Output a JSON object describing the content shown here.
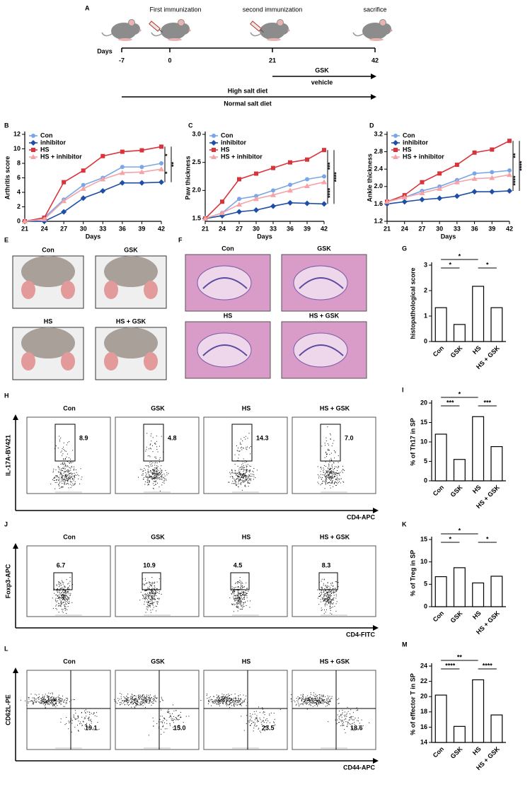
{
  "figure_a": {
    "label": "A",
    "events": [
      "First immunization",
      "second immunization",
      "sacrifice"
    ],
    "days_label": "Days",
    "days": [
      "-7",
      "0",
      "21",
      "42"
    ],
    "treatments": [
      "GSK",
      "vehicle"
    ],
    "diets": [
      "High salt diet",
      "Normal salt diet"
    ]
  },
  "chart_data": [
    {
      "type": "line",
      "panel": "B",
      "ylabel": "Arthritis score",
      "xlabel": "Days",
      "x": [
        21,
        24,
        27,
        30,
        33,
        36,
        39,
        42
      ],
      "xlim": [
        21,
        42
      ],
      "xticks": [
        21,
        24,
        27,
        30,
        33,
        36,
        39,
        42
      ],
      "ylim": [
        0,
        12
      ],
      "yticks": [
        0,
        2,
        4,
        6,
        8,
        10,
        12
      ],
      "legend": "upper left",
      "series": [
        {
          "name": "Con",
          "color": "#7aa6e8",
          "values": [
            0,
            0.5,
            3,
            5,
            6,
            7.5,
            7.5,
            8
          ]
        },
        {
          "name": "inhibitor",
          "color": "#1e4fa8",
          "values": [
            0,
            0,
            1.3,
            3.2,
            4.2,
            5.3,
            5.3,
            5.4
          ]
        },
        {
          "name": "HS",
          "color": "#d9343b",
          "values": [
            0,
            0.5,
            5.4,
            7,
            9,
            9.6,
            9.8,
            10.3
          ]
        },
        {
          "name": "HS + inhibitor",
          "color": "#f5a3a6",
          "values": [
            0,
            0.3,
            2.8,
            4.5,
            5.8,
            6.7,
            6.8,
            7.2
          ]
        }
      ],
      "annotations": [
        "*",
        "**",
        "*"
      ]
    },
    {
      "type": "line",
      "panel": "C",
      "ylabel": "Paw thickness",
      "xlabel": "Days",
      "x": [
        21,
        24,
        27,
        30,
        33,
        36,
        39,
        42
      ],
      "xlim": [
        21,
        42
      ],
      "xticks": [
        21,
        24,
        27,
        30,
        33,
        36,
        39,
        42
      ],
      "ylim": [
        1.45,
        3.0
      ],
      "yticks": [
        1.5,
        {
          "value": 2,
          "label": "2.0"
        },
        2.5,
        {
          "value": 3,
          "label": "3.0"
        }
      ],
      "legend": "upper left",
      "series": [
        {
          "name": "Con",
          "color": "#7aa6e8",
          "values": [
            1.5,
            1.6,
            1.85,
            1.9,
            2.0,
            2.1,
            2.2,
            2.25
          ]
        },
        {
          "name": "inhibitor",
          "color": "#1e4fa8",
          "values": [
            1.5,
            1.55,
            1.62,
            1.65,
            1.72,
            1.78,
            1.77,
            1.76
          ]
        },
        {
          "name": "HS",
          "color": "#d9343b",
          "values": [
            1.5,
            1.8,
            2.2,
            2.3,
            2.4,
            2.5,
            2.55,
            2.72
          ]
        },
        {
          "name": "HS + inhibitor",
          "color": "#f5a3a6",
          "values": [
            1.5,
            1.6,
            1.75,
            1.85,
            1.92,
            2.0,
            2.08,
            2.15
          ]
        }
      ],
      "annotations": [
        "***",
        "****",
        "****"
      ]
    },
    {
      "type": "line",
      "panel": "D",
      "ylabel": "Ankle thickness",
      "xlabel": "Days",
      "x": [
        21,
        24,
        27,
        30,
        33,
        36,
        39,
        42
      ],
      "xlim": [
        21,
        42
      ],
      "xticks": [
        21,
        24,
        27,
        30,
        33,
        36,
        39,
        42
      ],
      "ylim": [
        1.2,
        3.2
      ],
      "yticks": [
        1.2,
        1.6,
        {
          "value": 2,
          "label": "2.0"
        },
        2.4,
        2.8,
        3.2
      ],
      "legend": "upper left",
      "series": [
        {
          "name": "Con",
          "color": "#7aa6e8",
          "values": [
            1.65,
            1.75,
            1.9,
            2.0,
            2.15,
            2.3,
            2.33,
            2.37
          ]
        },
        {
          "name": "inhibitor",
          "color": "#1e4fa8",
          "values": [
            1.6,
            1.65,
            1.7,
            1.73,
            1.78,
            1.88,
            1.88,
            1.9
          ]
        },
        {
          "name": "HS",
          "color": "#d9343b",
          "values": [
            1.65,
            1.8,
            2.1,
            2.3,
            2.5,
            2.78,
            2.85,
            3.05
          ]
        },
        {
          "name": "HS + inhibitor",
          "color": "#f5a3a6",
          "values": [
            1.65,
            1.75,
            1.85,
            1.95,
            2.1,
            2.18,
            2.2,
            2.27
          ]
        }
      ],
      "annotations": [
        "**",
        "****",
        "****"
      ]
    },
    {
      "type": "bar",
      "panel": "G",
      "ylabel": "histopathological score",
      "categories": [
        "Con",
        "GSK",
        "HS",
        "HS + GSK"
      ],
      "values": [
        1.33,
        0.67,
        2.17,
        1.33
      ],
      "color": "#ffffff",
      "ylim": [
        0,
        3
      ],
      "yticks": [
        0,
        1,
        2,
        3
      ],
      "annotations": [
        "*",
        "*",
        "*"
      ]
    },
    {
      "type": "bar",
      "panel": "I",
      "ylabel": "% of Th17 in SP",
      "categories": [
        "Con",
        "GSK",
        "HS",
        "HS + GSK"
      ],
      "values": [
        12,
        5.5,
        16.5,
        8.8
      ],
      "color": "#ffffff",
      "ylim": [
        0,
        20
      ],
      "yticks": [
        0,
        5,
        10,
        15,
        20
      ],
      "annotations": [
        "***",
        "*",
        "***"
      ]
    },
    {
      "type": "bar",
      "panel": "K",
      "ylabel": "% of Treg in SP",
      "categories": [
        "Con",
        "GSK",
        "HS",
        "HS + GSK"
      ],
      "values": [
        6.7,
        8.7,
        5.3,
        6.8
      ],
      "color": "#ffffff",
      "ylim": [
        0,
        15
      ],
      "yticks": [
        0,
        5,
        10,
        15
      ],
      "annotations": [
        "*",
        "*",
        "*"
      ]
    },
    {
      "type": "bar",
      "panel": "M",
      "ylabel": "% of effector T in SP",
      "categories": [
        "Con",
        "GSK",
        "HS",
        "HS + GSK"
      ],
      "values": [
        20.2,
        16.1,
        22.2,
        17.6
      ],
      "color": "#ffffff",
      "ylim": [
        14,
        24
      ],
      "yticks": [
        14,
        16,
        18,
        20,
        22,
        24
      ],
      "annotations": [
        "****",
        "**",
        "****"
      ]
    }
  ],
  "photos_e": {
    "label": "E",
    "groups": [
      "Con",
      "GSK",
      "HS",
      "HS + GSK"
    ]
  },
  "histology_f": {
    "label": "F",
    "groups": [
      "Con",
      "GSK",
      "HS",
      "HS + GSK"
    ]
  },
  "flow_h": {
    "label": "H",
    "groups": [
      "Con",
      "GSK",
      "HS",
      "HS + GSK"
    ],
    "values": [
      "8.9",
      "4.8",
      "14.3",
      "7.0"
    ],
    "y_axis": "IL-17A-BV421",
    "x_axis": "CD4-APC"
  },
  "flow_j": {
    "label": "J",
    "groups": [
      "Con",
      "GSK",
      "HS",
      "HS + GSK"
    ],
    "values": [
      "6.7",
      "10.9",
      "4.5",
      "8.3"
    ],
    "y_axis": "Foxp3-APC",
    "x_axis": "CD4-FITC"
  },
  "flow_l": {
    "label": "L",
    "groups": [
      "Con",
      "GSK",
      "HS",
      "HS + GSK"
    ],
    "values": [
      "19.1",
      "15.0",
      "23.5",
      "18.6"
    ],
    "y_axis": "CD62L-PE",
    "x_axis": "CD44-APC"
  }
}
